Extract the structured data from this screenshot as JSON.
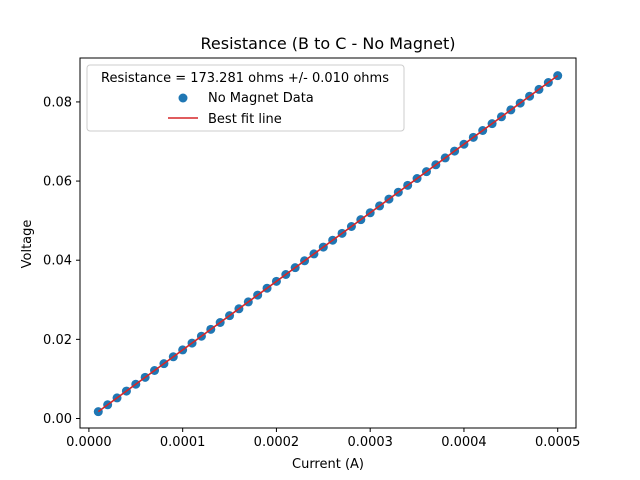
{
  "chart_data": {
    "type": "scatter",
    "title": "Resistance (B to C - No Magnet)",
    "xlabel": "Current (A)",
    "ylabel": "Voltage",
    "xlim": [
      -9.5e-06,
      0.0005195
    ],
    "ylim": [
      -0.0024,
      0.0911
    ],
    "xticks": [
      0.0,
      0.0001,
      0.0002,
      0.0003,
      0.0004,
      0.0005
    ],
    "xtick_labels": [
      "0.0000",
      "0.0001",
      "0.0002",
      "0.0003",
      "0.0004",
      "0.0005"
    ],
    "yticks": [
      0.0,
      0.02,
      0.04,
      0.06,
      0.08
    ],
    "ytick_labels": [
      "0.00",
      "0.02",
      "0.04",
      "0.06",
      "0.08"
    ],
    "grid": false,
    "legend": {
      "placement": "top-left",
      "title": "Resistance = 173.281 ohms +/- 0.010 ohms",
      "entries": [
        "No Magnet Data",
        "Best fit line"
      ]
    },
    "colors": {
      "points": "#1f77b4",
      "fit": "#d62728"
    },
    "series": [
      {
        "name": "No Magnet Data",
        "kind": "scatter",
        "x": [
          1e-05,
          2e-05,
          3e-05,
          4e-05,
          5e-05,
          6e-05,
          7e-05,
          8e-05,
          9e-05,
          0.0001,
          0.00011,
          0.00012,
          0.00013,
          0.00014,
          0.00015,
          0.00016,
          0.00017,
          0.00018,
          0.00019,
          0.0002,
          0.00021,
          0.00022,
          0.00023,
          0.00024,
          0.00025,
          0.00026,
          0.00027,
          0.00028,
          0.00029,
          0.0003,
          0.00031,
          0.00032,
          0.00033,
          0.00034,
          0.00035,
          0.00036,
          0.00037,
          0.00038,
          0.00039,
          0.0004,
          0.00041,
          0.00042,
          0.00043,
          0.00044,
          0.00045,
          0.00046,
          0.00047,
          0.00048,
          0.00049,
          0.0005
        ],
        "y": [
          0.00173,
          0.00347,
          0.0052,
          0.00693,
          0.00866,
          0.0104,
          0.01213,
          0.01386,
          0.0156,
          0.01733,
          0.01906,
          0.02079,
          0.02253,
          0.02426,
          0.02599,
          0.02772,
          0.02946,
          0.03119,
          0.03292,
          0.03466,
          0.03639,
          0.03812,
          0.03985,
          0.04159,
          0.04332,
          0.04505,
          0.04679,
          0.04852,
          0.05025,
          0.05198,
          0.05372,
          0.05545,
          0.05718,
          0.05892,
          0.06065,
          0.06238,
          0.06411,
          0.06585,
          0.06758,
          0.06931,
          0.07105,
          0.07278,
          0.07451,
          0.07624,
          0.07798,
          0.07971,
          0.08144,
          0.08317,
          0.08491,
          0.08664
        ]
      },
      {
        "name": "Best fit line",
        "kind": "line",
        "slope": 173.281,
        "x": [
          1e-05,
          0.0005
        ]
      }
    ]
  }
}
